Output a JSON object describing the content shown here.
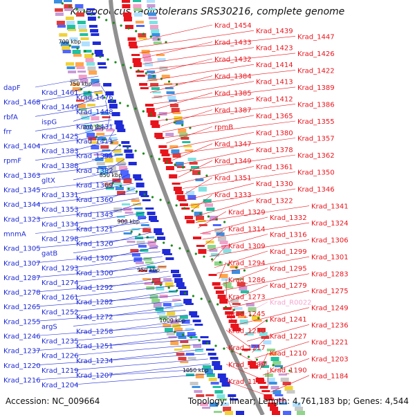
{
  "title": "Kineococcus radiotolerans SRS30216, complete genome",
  "footer": {
    "accession_label": "Accession:",
    "accession": "NC_009664",
    "topology_text": "Topology: linear; Length: 4,761,183 bp; Genes: 4,544"
  },
  "kbp_ticks": [
    "700 kbp",
    "750 kbp",
    "800 kbp",
    "850 kbp",
    "900 kbp",
    "950 kbp",
    "1000 kbp",
    "1050 kbp"
  ],
  "colors": {
    "forward": "#e8141c",
    "reverse": "#1f2bd6",
    "rna": "#f4a6d0",
    "backbone": "#909090",
    "tick": "#1a8a1a"
  },
  "left_labels": [
    "dapF",
    "Krad_1461",
    "Krad_1476",
    "Krad_1468",
    "Krad_1449",
    "Krad_1448",
    "rbfA",
    "ispG",
    "Krad_1431",
    "frr",
    "Krad_1425",
    "Krad_1411",
    "Krad_1404",
    "Krad_1383",
    "Krad_1395",
    "rpmF",
    "Krad_1388",
    "Krad_1382",
    "Krad_1363",
    "gltX",
    "Krad_1369",
    "Krad_1345",
    "Krad_1331",
    "Krad_1360",
    "Krad_1344",
    "Krad_1353",
    "Krad_1343",
    "Krad_1323",
    "Krad_1334",
    "Krad_1321",
    "mnmA",
    "Krad_1298",
    "Krad_1320",
    "Krad_1305",
    "gatB",
    "Krad_1302",
    "Krad_1307",
    "Krad_1293",
    "Krad_1300",
    "Krad_1287",
    "Krad_1274",
    "Krad_1292",
    "Krad_1278",
    "Krad_1261",
    "Krad_1282",
    "Krad_1265",
    "Krad_1252",
    "Krad_1272",
    "Krad_1255",
    "argS",
    "Krad_1258",
    "Krad_1246",
    "Krad_1235",
    "Krad_1251",
    "Krad_1237",
    "Krad_1226",
    "Krad_1234",
    "Krad_1220",
    "Krad_1219",
    "Krad_1207",
    "Krad_1216",
    "Krad_1204"
  ],
  "right_labels": [
    "Krad_1454",
    "Krad_1439",
    "Krad_1447",
    "Krad_1433",
    "Krad_1423",
    "Krad_1426",
    "Krad_1432",
    "Krad_1414",
    "Krad_1422",
    "Krad_1384",
    "Krad_1413",
    "Krad_1389",
    "Krad_1385",
    "Krad_1412",
    "Krad_1386",
    "Krad_1387",
    "Krad_1365",
    "Krad_1355",
    "rpmB",
    "Krad_1380",
    "Krad_1357",
    "Krad_1347",
    "Krad_1378",
    "Krad_1362",
    "Krad_1349",
    "Krad_1361",
    "Krad_1350",
    "Krad_1351",
    "Krad_1330",
    "Krad_1346",
    "Krad_1333",
    "Krad_1322",
    "Krad_1341",
    "Krad_1329",
    "Krad_1332",
    "Krad_1324",
    "Krad_1314",
    "Krad_1316",
    "Krad_1306",
    "Krad_1309",
    "Krad_1299",
    "Krad_1301",
    "Krad_1294",
    "Krad_1295",
    "Krad_1283",
    "Krad_1286",
    "Krad_1279",
    "Krad_1275",
    "Krad_1273",
    "Krad_R0022",
    "Krad_1249",
    "Krad_1245",
    "Krad_1241",
    "Krad_1236",
    "Krad_1230",
    "Krad_1227",
    "Krad_1221",
    "Krad_1217",
    "Krad_1210",
    "Krad_1203",
    "Krad_1199",
    "Krad_1190",
    "Krad_1184",
    "Krad_1174"
  ]
}
